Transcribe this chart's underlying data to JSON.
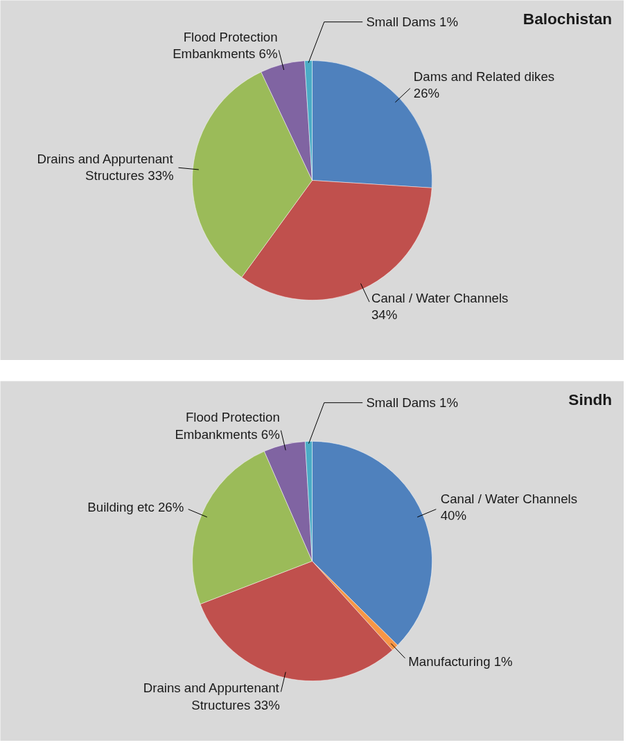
{
  "chart_data": [
    {
      "type": "pie",
      "title": "Balochistan",
      "categories": [
        "Dams and Related dikes",
        "Canal / Water Channels",
        "Drains and Appurtenant Structures",
        "Flood Protection Embankments",
        "Small Dams"
      ],
      "values": [
        26,
        34,
        33,
        6,
        1
      ],
      "colors": [
        "#4f81bd",
        "#c0504d",
        "#9bbb59",
        "#8064a2",
        "#4bacc6"
      ],
      "value_labels": [
        "26%",
        "34%",
        "33%",
        "6%",
        "1%"
      ]
    },
    {
      "type": "pie",
      "title": "Sindh",
      "categories": [
        "Canal / Water Channels",
        "Manufacturing",
        "Drains and Appurtenant Structures",
        "Building etc",
        "Flood Protection Embankments",
        "Small Dams"
      ],
      "values": [
        40,
        1,
        33,
        26,
        6,
        1
      ],
      "colors": [
        "#4f81bd",
        "#f79646",
        "#c0504d",
        "#9bbb59",
        "#8064a2",
        "#4bacc6"
      ],
      "value_labels": [
        "40%",
        "1%",
        "33%",
        "26%",
        "6%",
        "1%"
      ]
    }
  ]
}
